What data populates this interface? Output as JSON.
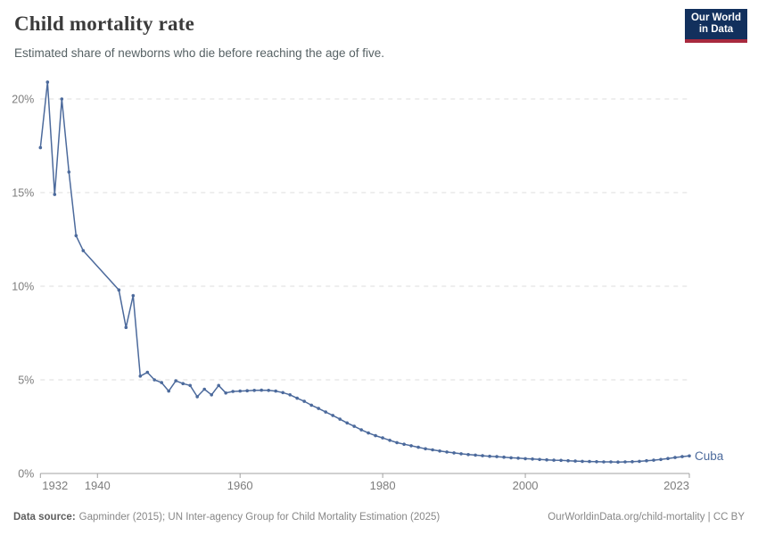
{
  "header": {
    "title": "Child mortality rate",
    "subtitle": "Estimated share of newborns who die before reaching the age of five.",
    "logo_line1": "Our World",
    "logo_line2": "in Data"
  },
  "footer": {
    "source_label": "Data source:",
    "source_text": "Gapminder (2015); UN Inter-agency Group for Child Mortality Estimation (2025)",
    "link_text": "OurWorldinData.org/child-mortality | CC BY"
  },
  "colors": {
    "line": "#4C6A9C",
    "grid": "#dddddd",
    "axis": "#a1a1a1",
    "axis_text": "#7d7d7d",
    "logo_bg": "#12305d",
    "logo_red": "#a82a3e"
  },
  "chart_data": {
    "type": "line",
    "title": "Child mortality rate",
    "xlabel": "",
    "ylabel": "share of newborns dying before age five (%)",
    "xlim": [
      1932,
      2023
    ],
    "ylim": [
      0,
      21
    ],
    "grid": "horizontal-dashed",
    "legend_position": "end-of-line-label",
    "y_ticks": [
      {
        "value": 0,
        "label": "0%"
      },
      {
        "value": 5,
        "label": "5%"
      },
      {
        "value": 10,
        "label": "10%"
      },
      {
        "value": 15,
        "label": "15%"
      },
      {
        "value": 20,
        "label": "20%"
      }
    ],
    "x_ticks": [
      {
        "year": 1932,
        "label": "1932",
        "align": "start"
      },
      {
        "year": 1940,
        "label": "1940",
        "align": "middle"
      },
      {
        "year": 1960,
        "label": "1960",
        "align": "middle"
      },
      {
        "year": 1980,
        "label": "1980",
        "align": "middle"
      },
      {
        "year": 2000,
        "label": "2000",
        "align": "middle"
      },
      {
        "year": 2023,
        "label": "2023",
        "align": "end"
      }
    ],
    "series": [
      {
        "name": "Cuba",
        "note": "no data points 1939-1942 (straight interpolated segment)",
        "points": [
          [
            1932,
            17.4
          ],
          [
            1933,
            20.9
          ],
          [
            1934,
            14.9
          ],
          [
            1935,
            20.0
          ],
          [
            1936,
            16.1
          ],
          [
            1937,
            12.7
          ],
          [
            1938,
            11.9
          ],
          [
            1943,
            9.8
          ],
          [
            1944,
            7.8
          ],
          [
            1945,
            9.5
          ],
          [
            1946,
            5.2
          ],
          [
            1947,
            5.4
          ],
          [
            1948,
            5.0
          ],
          [
            1949,
            4.85
          ],
          [
            1950,
            4.4
          ],
          [
            1951,
            4.95
          ],
          [
            1952,
            4.8
          ],
          [
            1953,
            4.7
          ],
          [
            1954,
            4.1
          ],
          [
            1955,
            4.5
          ],
          [
            1956,
            4.2
          ],
          [
            1957,
            4.7
          ],
          [
            1958,
            4.3
          ],
          [
            1959,
            4.38
          ],
          [
            1960,
            4.4
          ],
          [
            1961,
            4.42
          ],
          [
            1962,
            4.44
          ],
          [
            1963,
            4.45
          ],
          [
            1964,
            4.44
          ],
          [
            1965,
            4.4
          ],
          [
            1966,
            4.32
          ],
          [
            1967,
            4.2
          ],
          [
            1968,
            4.02
          ],
          [
            1969,
            3.85
          ],
          [
            1970,
            3.65
          ],
          [
            1971,
            3.47
          ],
          [
            1972,
            3.28
          ],
          [
            1973,
            3.1
          ],
          [
            1974,
            2.9
          ],
          [
            1975,
            2.7
          ],
          [
            1976,
            2.52
          ],
          [
            1977,
            2.33
          ],
          [
            1978,
            2.16
          ],
          [
            1979,
            2.02
          ],
          [
            1980,
            1.9
          ],
          [
            1981,
            1.77
          ],
          [
            1982,
            1.65
          ],
          [
            1983,
            1.56
          ],
          [
            1984,
            1.48
          ],
          [
            1985,
            1.4
          ],
          [
            1986,
            1.32
          ],
          [
            1987,
            1.26
          ],
          [
            1988,
            1.2
          ],
          [
            1989,
            1.15
          ],
          [
            1990,
            1.1
          ],
          [
            1991,
            1.05
          ],
          [
            1992,
            1.01
          ],
          [
            1993,
            0.98
          ],
          [
            1994,
            0.95
          ],
          [
            1995,
            0.92
          ],
          [
            1996,
            0.9
          ],
          [
            1997,
            0.87
          ],
          [
            1998,
            0.84
          ],
          [
            1999,
            0.82
          ],
          [
            2000,
            0.79
          ],
          [
            2001,
            0.77
          ],
          [
            2002,
            0.75
          ],
          [
            2003,
            0.73
          ],
          [
            2004,
            0.71
          ],
          [
            2005,
            0.7
          ],
          [
            2006,
            0.68
          ],
          [
            2007,
            0.66
          ],
          [
            2008,
            0.65
          ],
          [
            2009,
            0.64
          ],
          [
            2010,
            0.63
          ],
          [
            2011,
            0.62
          ],
          [
            2012,
            0.62
          ],
          [
            2013,
            0.61
          ],
          [
            2014,
            0.62
          ],
          [
            2015,
            0.63
          ],
          [
            2016,
            0.65
          ],
          [
            2017,
            0.68
          ],
          [
            2018,
            0.71
          ],
          [
            2019,
            0.75
          ],
          [
            2020,
            0.8
          ],
          [
            2021,
            0.85
          ],
          [
            2022,
            0.9
          ],
          [
            2023,
            0.94
          ]
        ]
      }
    ]
  }
}
